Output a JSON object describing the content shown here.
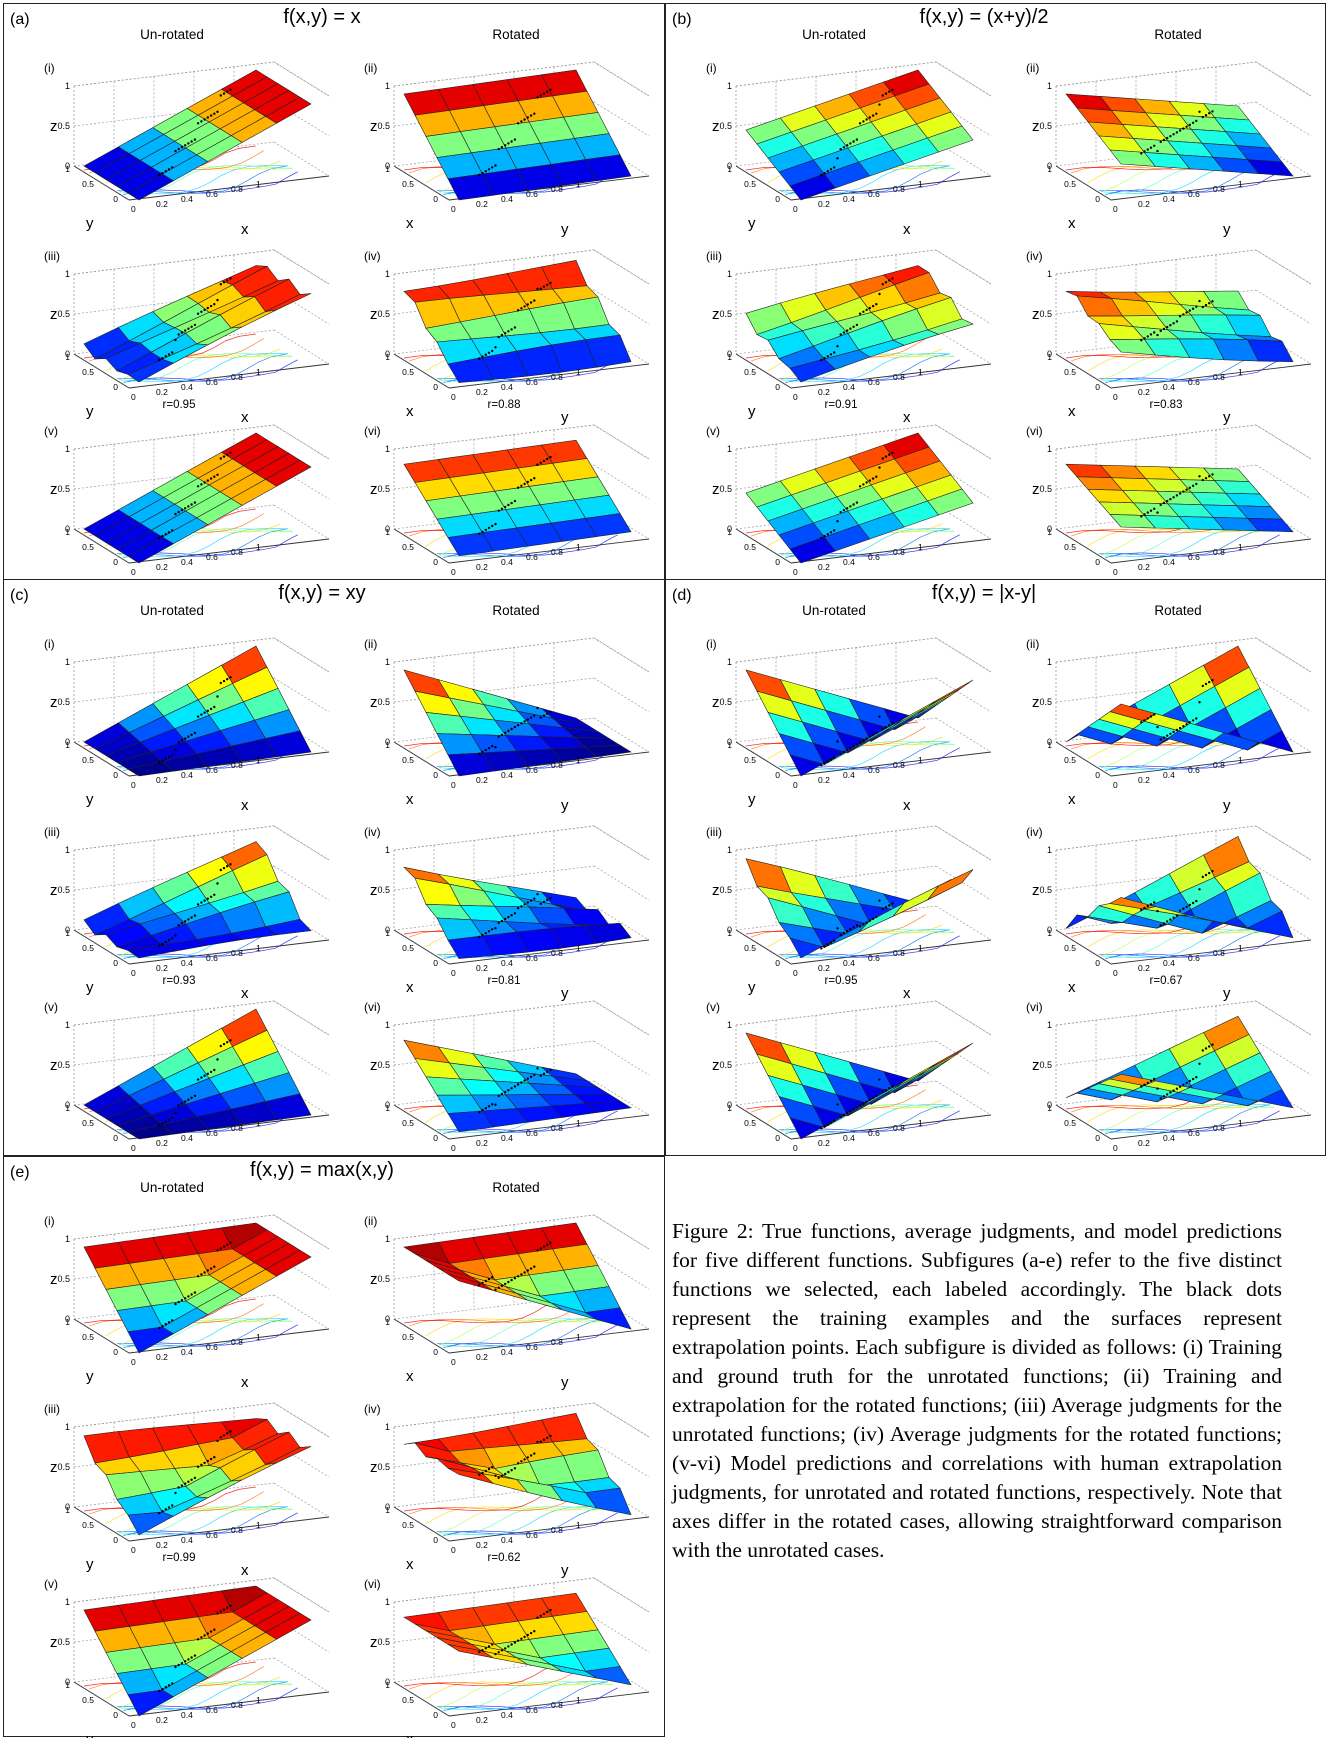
{
  "panels": [
    {
      "id": "a",
      "letter": "(a)",
      "title": "f(x,y) = x",
      "func": "x",
      "col_left": "Un-rotated",
      "col_right": "Rotated",
      "r_left": "r=0.95",
      "r_right": "r=0.88"
    },
    {
      "id": "b",
      "letter": "(b)",
      "title": "f(x,y) = (x+y)/2",
      "func": "avg",
      "col_left": "Un-rotated",
      "col_right": "Rotated",
      "r_left": "r=0.91",
      "r_right": "r=0.83"
    },
    {
      "id": "c",
      "letter": "(c)",
      "title": "f(x,y) = xy",
      "func": "mul",
      "col_left": "Un-rotated",
      "col_right": "Rotated",
      "r_left": "r=0.93",
      "r_right": "r=0.81"
    },
    {
      "id": "d",
      "letter": "(d)",
      "title": "f(x,y) = |x-y|",
      "func": "absdiff",
      "col_left": "Un-rotated",
      "col_right": "Rotated",
      "r_left": "r=0.95",
      "r_right": "r=0.67"
    },
    {
      "id": "e",
      "letter": "(e)",
      "title": "f(x,y) = max(x,y)",
      "func": "max",
      "col_left": "Un-rotated",
      "col_right": "Rotated",
      "r_left": "r=0.99",
      "r_right": "r=0.62"
    }
  ],
  "subplot_labels": [
    "(i)",
    "(ii)",
    "(iii)",
    "(iv)",
    "(v)",
    "(vi)"
  ],
  "axis_labels": {
    "x": "x",
    "y": "y",
    "z": "z"
  },
  "ticks": {
    "z": [
      "0",
      "0.5",
      "1"
    ],
    "front": [
      "0",
      "0.2",
      "0.4",
      "0.6",
      "0.8",
      "1"
    ],
    "back": [
      "0",
      "0.5",
      "1"
    ]
  },
  "caption": "Figure 2: True functions, average judgments, and model predictions for five different functions. Subfigures (a-e) refer to the five distinct functions we selected, each labeled accordingly. The black dots represent the training examples and the surfaces represent extrapolation points. Each subfigure is divided as follows: (i) Training and ground truth for the unrotated functions; (ii) Training and extrapolation for the rotated functions; (iii) Average judgments for the unrotated functions; (iv) Average judgments for the rotated functions; (v-vi) Model predictions and correlations with human extrapolation judgments, for unrotated and rotated functions, respectively. Note that axes differ in the rotated cases, allowing straightforward comparison with the unrotated cases.",
  "colors": {
    "border": "#222222",
    "grid": "#9a9a9a",
    "dots": "#000000"
  }
}
